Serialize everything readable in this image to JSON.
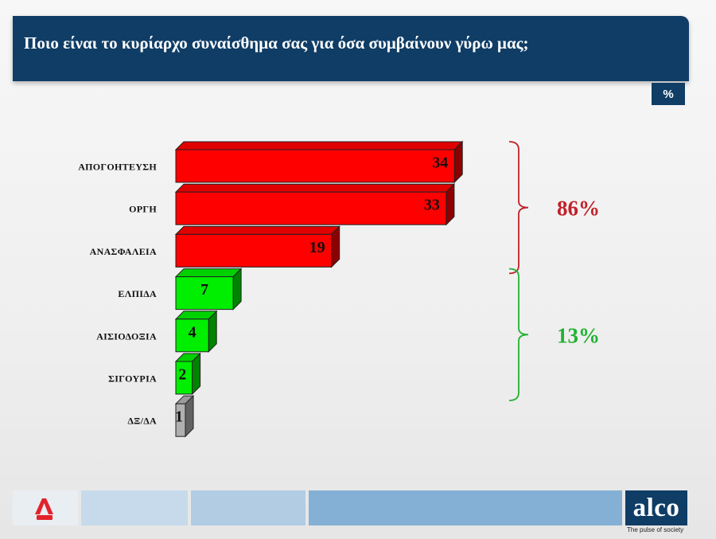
{
  "header": {
    "title": "Ποιο είναι το κυρίαρχο συναίσθημα σας για όσα συμβαίνουν γύρω μας;"
  },
  "unit_badge": "%",
  "chart_data": {
    "type": "bar",
    "orientation": "horizontal",
    "style": "3d",
    "categories": [
      "ΑΠΟΓΟΗΤΕΥΣΗ",
      "ΟΡΓΗ",
      "ΑΝΑΣΦΑΛΕΙΑ",
      "ΕΛΠΙΔΑ",
      "ΑΙΣΙΟΔΟΞΙΑ",
      "ΣΙΓΟΥΡΙΑ",
      "ΔΞ/ΔΑ"
    ],
    "values": [
      34,
      33,
      19,
      7,
      4,
      2,
      1
    ],
    "bar_colors": [
      "#ff0000",
      "#ff0000",
      "#ff0000",
      "#00ee00",
      "#00ee00",
      "#00ee00",
      "#b0b0b0"
    ],
    "value_labels": [
      "34",
      "33",
      "19",
      "7",
      "4",
      "2",
      "1"
    ],
    "groups": [
      {
        "label": "86%",
        "from": 0,
        "to": 2,
        "color": "#c0222b"
      },
      {
        "label": "13%",
        "from": 3,
        "to": 5,
        "color": "#21b330"
      }
    ],
    "unit": "%",
    "grid": false,
    "legend": "none"
  },
  "footer": {
    "logo_left": "ALPHA",
    "brand": "alco",
    "tagline": "The pulse of society"
  }
}
